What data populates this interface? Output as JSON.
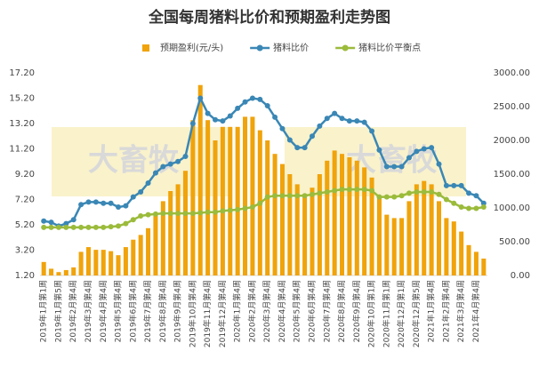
{
  "chart_data": {
    "type": "combo",
    "title": "全国每周猪料比价和预期盈利走势图",
    "watermark": "大畜牧",
    "categories": [
      "2019年1月第1周",
      null,
      "2019年1月第5周",
      null,
      "2019年2月第4周",
      null,
      "2019年3月第4周",
      null,
      "2019年4月第4周",
      null,
      "2019年5月第4周",
      null,
      "2019年6月第4周",
      null,
      "2019年7月第4周",
      null,
      "2019年8月第4周",
      null,
      "2019年9月第4周",
      null,
      "2019年10月第4周",
      null,
      "2019年11月第4周",
      null,
      "2019年12月第4周",
      null,
      "2020年1月第4周",
      null,
      "2020年2月第4周",
      null,
      "2020年3月第4周",
      null,
      "2020年4月第4周",
      null,
      "2020年5月第4周",
      null,
      "2020年6月第4周",
      null,
      "2020年7月第4周",
      null,
      "2020年8月第4周",
      null,
      "2020年9月第4周",
      null,
      "2020年10月第1周",
      null,
      "2020年11月第1周",
      null,
      "2020年12月第1周",
      null,
      "2020年12月第5周",
      null,
      "2021年1月第4周",
      null,
      "2021年2月第4周",
      null,
      "2021年3月第4周",
      null,
      "2021年4月第4周",
      null
    ],
    "series": [
      {
        "name": "预期盈利(元/头)",
        "type": "bar",
        "axis": "y2",
        "color": "#f0a30a",
        "values": [
          200,
          100,
          50,
          80,
          120,
          350,
          420,
          380,
          380,
          360,
          300,
          420,
          530,
          600,
          700,
          900,
          1100,
          1250,
          1350,
          1550,
          2300,
          2820,
          2300,
          2000,
          2200,
          2200,
          2200,
          2350,
          2350,
          2150,
          2000,
          1800,
          1650,
          1500,
          1350,
          1200,
          1300,
          1500,
          1700,
          1850,
          1800,
          1750,
          1700,
          1600,
          1450,
          1150,
          900,
          850,
          850,
          1100,
          1350,
          1400,
          1350,
          1100,
          850,
          800,
          650,
          450,
          350,
          250
        ]
      },
      {
        "name": "猪料比价",
        "type": "line",
        "color": "#3a87b5",
        "values": [
          5.5,
          5.4,
          5.1,
          5.3,
          5.6,
          6.8,
          7.0,
          7.0,
          6.9,
          6.9,
          6.6,
          6.7,
          7.4,
          7.8,
          8.5,
          9.3,
          9.8,
          10.0,
          10.2,
          10.6,
          13.2,
          15.2,
          14.0,
          13.5,
          13.4,
          13.8,
          14.4,
          14.9,
          15.2,
          15.1,
          14.6,
          13.7,
          12.8,
          11.9,
          11.3,
          11.3,
          12.2,
          13.0,
          13.6,
          14.0,
          13.6,
          13.4,
          13.4,
          13.3,
          12.6,
          11.1,
          9.8,
          9.8,
          9.8,
          10.5,
          11.0,
          11.2,
          11.3,
          10.0,
          8.3,
          8.3,
          8.3,
          7.7,
          7.5,
          6.9
        ]
      },
      {
        "name": "猪料比价平衡点",
        "type": "line",
        "color": "#9bbb3b",
        "values": [
          5.0,
          5.0,
          5.0,
          5.0,
          5.0,
          5.0,
          5.0,
          5.0,
          5.0,
          5.05,
          5.1,
          5.3,
          5.6,
          5.9,
          6.0,
          6.05,
          6.1,
          6.1,
          6.1,
          6.1,
          6.1,
          6.15,
          6.2,
          6.2,
          6.3,
          6.35,
          6.4,
          6.5,
          6.6,
          6.9,
          7.4,
          7.5,
          7.5,
          7.5,
          7.5,
          7.5,
          7.6,
          7.7,
          7.8,
          7.9,
          8.0,
          8.0,
          8.0,
          8.0,
          7.9,
          7.4,
          7.4,
          7.4,
          7.5,
          7.7,
          7.8,
          7.8,
          7.8,
          7.6,
          7.2,
          6.9,
          6.6,
          6.5,
          6.5,
          6.6
        ]
      }
    ],
    "ylim": [
      1.2,
      17.2
    ],
    "yticks": [
      {
        "value": 1.2,
        "label": "1.20"
      },
      {
        "value": 3.2,
        "label": "3.20"
      },
      {
        "value": 5.2,
        "label": "5.20"
      },
      {
        "value": 7.2,
        "label": "7.20"
      },
      {
        "value": 9.2,
        "label": "9.20"
      },
      {
        "value": 11.2,
        "label": "11.20"
      },
      {
        "value": 13.2,
        "label": "13.20"
      },
      {
        "value": 15.2,
        "label": "15.20"
      },
      {
        "value": 17.2,
        "label": "17.20"
      }
    ],
    "y2lim": [
      0,
      3000
    ],
    "y2ticks": [
      {
        "value": 0,
        "label": "0.00"
      },
      {
        "value": 500,
        "label": "500.00"
      },
      {
        "value": 1000,
        "label": "1000.00"
      },
      {
        "value": 1500,
        "label": "1500.00"
      },
      {
        "value": 2000,
        "label": "2000.00"
      },
      {
        "value": 2500,
        "label": "2500.00"
      },
      {
        "value": 3000,
        "label": "3000.00"
      }
    ]
  }
}
